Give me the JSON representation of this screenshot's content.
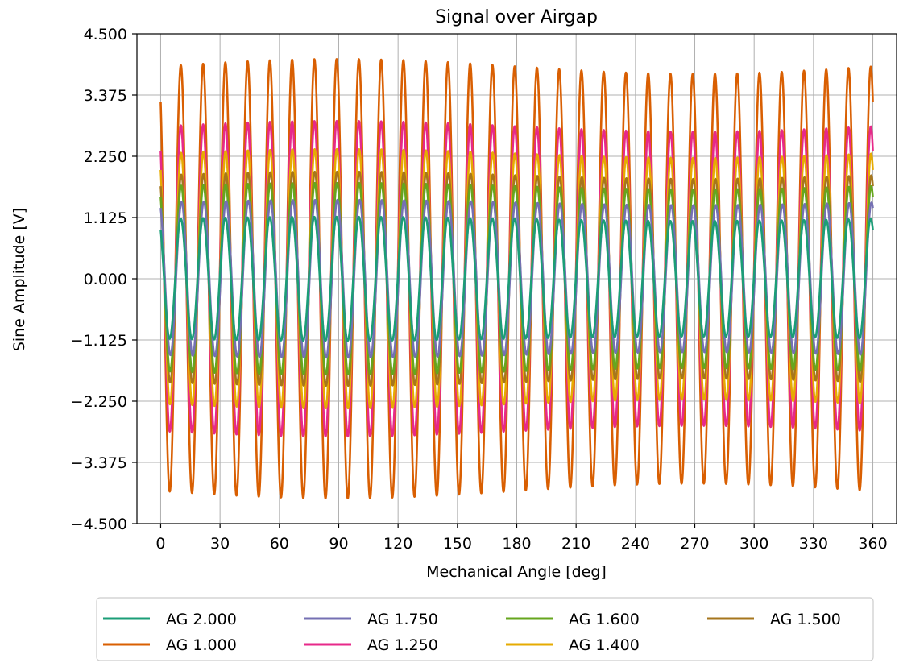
{
  "chart_data": {
    "type": "line",
    "title": "Signal over Airgap",
    "xlabel": "Mechanical Angle [deg]",
    "ylabel": "Sine Amplitude [V]",
    "xlim": [
      -12,
      372
    ],
    "ylim": [
      -4.5,
      4.5
    ],
    "xticks": [
      0,
      30,
      60,
      90,
      120,
      150,
      180,
      210,
      240,
      270,
      300,
      330,
      360
    ],
    "xtick_labels": [
      "0",
      "30",
      "60",
      "90",
      "120",
      "150",
      "180",
      "210",
      "240",
      "270",
      "300",
      "330",
      "360"
    ],
    "yticks": [
      -4.5,
      -3.375,
      -2.25,
      -1.125,
      0,
      1.125,
      2.25,
      3.375,
      4.5
    ],
    "ytick_labels": [
      "−4.500",
      "−3.375",
      "−2.250",
      "−1.125",
      "0.000",
      "1.125",
      "2.250",
      "3.375",
      "4.500"
    ],
    "grid": true,
    "legend_position": "below",
    "cycles_per_revolution": 32,
    "series": [
      {
        "name": "AG 2.000",
        "color": "#1b9e77",
        "amplitude": 1.1,
        "start_value": 0.9
      },
      {
        "name": "AG 1.750",
        "color": "#7570b3",
        "amplitude": 1.4,
        "start_value": 1.3
      },
      {
        "name": "AG 1.600",
        "color": "#66a61e",
        "amplitude": 1.7,
        "start_value": 1.5
      },
      {
        "name": "AG 1.500",
        "color": "#a6761d",
        "amplitude": 1.9,
        "start_value": 1.7
      },
      {
        "name": "AG 1.400",
        "color": "#e6ab02",
        "amplitude": 2.3,
        "start_value": 2.0
      },
      {
        "name": "AG 1.250",
        "color": "#e7298a",
        "amplitude": 2.8,
        "start_value": 2.35
      },
      {
        "name": "AG 1.000",
        "color": "#d95f02",
        "amplitude": 3.9,
        "start_value": 3.25
      }
    ],
    "legend_entries": [
      {
        "name": "AG 2.000",
        "color": "#1b9e77"
      },
      {
        "name": "AG 1.750",
        "color": "#7570b3"
      },
      {
        "name": "AG 1.600",
        "color": "#66a61e"
      },
      {
        "name": "AG 1.500",
        "color": "#a6761d"
      },
      {
        "name": "AG 1.000",
        "color": "#d95f02"
      },
      {
        "name": "AG 1.250",
        "color": "#e7298a"
      },
      {
        "name": "AG 1.400",
        "color": "#e6ab02"
      }
    ]
  }
}
